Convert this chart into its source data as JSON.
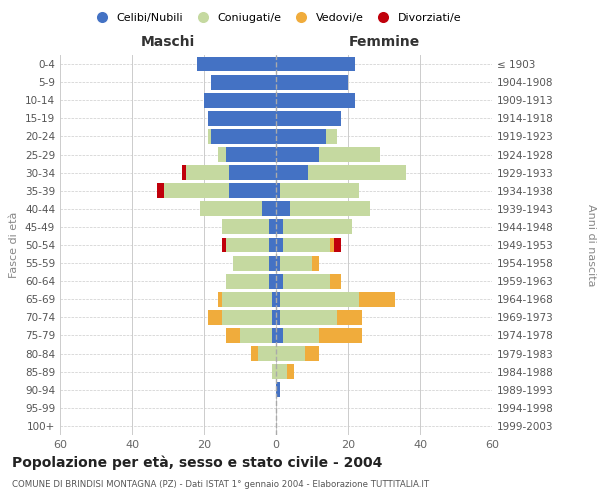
{
  "age_groups": [
    "0-4",
    "5-9",
    "10-14",
    "15-19",
    "20-24",
    "25-29",
    "30-34",
    "35-39",
    "40-44",
    "45-49",
    "50-54",
    "55-59",
    "60-64",
    "65-69",
    "70-74",
    "75-79",
    "80-84",
    "85-89",
    "90-94",
    "95-99",
    "100+"
  ],
  "birth_years": [
    "1999-2003",
    "1994-1998",
    "1989-1993",
    "1984-1988",
    "1979-1983",
    "1974-1978",
    "1969-1973",
    "1964-1968",
    "1959-1963",
    "1954-1958",
    "1949-1953",
    "1944-1948",
    "1939-1943",
    "1934-1938",
    "1929-1933",
    "1924-1928",
    "1919-1923",
    "1914-1918",
    "1909-1913",
    "1904-1908",
    "≤ 1903"
  ],
  "colors": {
    "celibi": "#4472C4",
    "coniugati": "#C5D9A0",
    "vedovi": "#F0AC3C",
    "divorziati": "#C0000B"
  },
  "maschi": {
    "celibi": [
      22,
      18,
      20,
      19,
      18,
      14,
      13,
      13,
      4,
      2,
      2,
      2,
      2,
      1,
      1,
      1,
      0,
      0,
      0,
      0,
      0
    ],
    "coniugati": [
      0,
      0,
      0,
      0,
      1,
      2,
      12,
      18,
      17,
      13,
      12,
      10,
      12,
      14,
      14,
      9,
      5,
      1,
      0,
      0,
      0
    ],
    "vedovi": [
      0,
      0,
      0,
      0,
      0,
      0,
      0,
      0,
      0,
      0,
      0,
      0,
      0,
      1,
      4,
      4,
      2,
      0,
      0,
      0,
      0
    ],
    "divorziati": [
      0,
      0,
      0,
      0,
      0,
      0,
      1,
      2,
      0,
      0,
      1,
      0,
      0,
      0,
      0,
      0,
      0,
      0,
      0,
      0,
      0
    ]
  },
  "femmine": {
    "celibi": [
      22,
      20,
      22,
      18,
      14,
      12,
      9,
      1,
      4,
      2,
      2,
      1,
      2,
      1,
      1,
      2,
      0,
      0,
      1,
      0,
      0
    ],
    "coniugati": [
      0,
      0,
      0,
      0,
      3,
      17,
      27,
      22,
      22,
      19,
      13,
      9,
      13,
      22,
      16,
      10,
      8,
      3,
      0,
      0,
      0
    ],
    "vedovi": [
      0,
      0,
      0,
      0,
      0,
      0,
      0,
      0,
      0,
      0,
      1,
      2,
      3,
      10,
      7,
      12,
      4,
      2,
      0,
      0,
      0
    ],
    "divorziati": [
      0,
      0,
      0,
      0,
      0,
      0,
      0,
      0,
      0,
      0,
      2,
      0,
      0,
      0,
      0,
      0,
      0,
      0,
      0,
      0,
      0
    ]
  },
  "xlim": 60,
  "title": "Popolazione per età, sesso e stato civile - 2004",
  "subtitle": "COMUNE DI BRINDISI MONTAGNA (PZ) - Dati ISTAT 1° gennaio 2004 - Elaborazione TUTTITALIA.IT",
  "xlabel_left": "Maschi",
  "xlabel_right": "Femmine",
  "ylabel_left": "Fasce di età",
  "ylabel_right": "Anni di nascita",
  "legend_labels": [
    "Celibi/Nubili",
    "Coniugati/e",
    "Vedovi/e",
    "Divorziati/e"
  ],
  "background_color": "#ffffff",
  "grid_color": "#cccccc"
}
